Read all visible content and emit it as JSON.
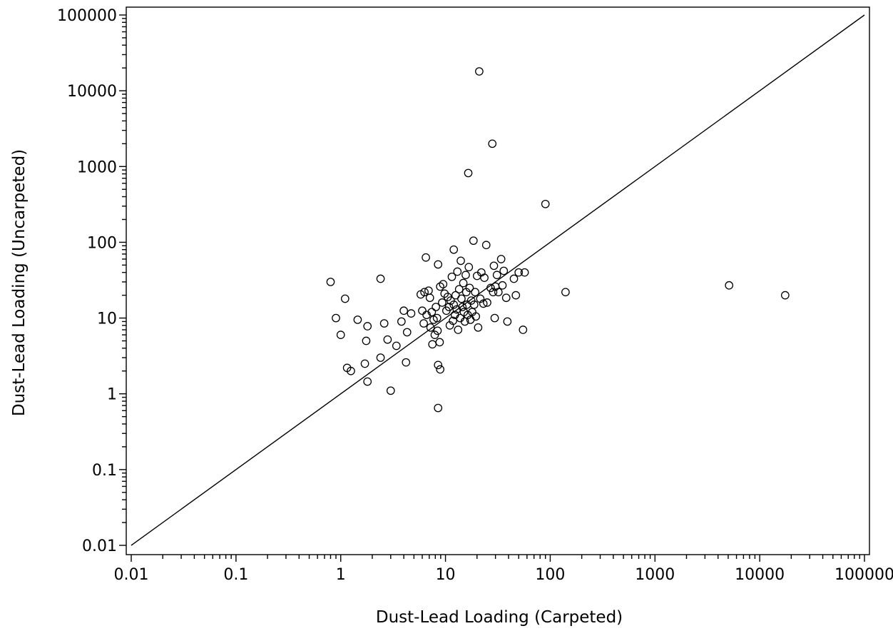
{
  "chart_data": {
    "type": "scatter",
    "title": "",
    "xlabel": "Dust-Lead Loading (Carpeted)",
    "ylabel": "Dust-Lead Loading (Uncarpeted)",
    "xscale": "log",
    "yscale": "log",
    "xlim": [
      0.01,
      100000
    ],
    "ylim": [
      0.01,
      100000
    ],
    "x_ticks": [
      0.01,
      0.1,
      1,
      10,
      100,
      1000,
      10000,
      100000
    ],
    "x_tick_labels": [
      "0.01",
      "0.1",
      "1",
      "10",
      "100",
      "1000",
      "10000",
      "100000"
    ],
    "y_ticks": [
      0.01,
      0.1,
      1,
      10,
      100,
      1000,
      10000,
      100000
    ],
    "y_tick_labels": [
      "0.01",
      "0.1",
      "1",
      "10",
      "100",
      "1000",
      "10000",
      "100000"
    ],
    "grid": false,
    "reference_line": {
      "from": [
        0.01,
        0.01
      ],
      "to": [
        100000,
        100000
      ]
    },
    "points": [
      [
        0.8,
        30
      ],
      [
        0.9,
        10
      ],
      [
        1.0,
        6
      ],
      [
        1.1,
        18
      ],
      [
        1.15,
        2.2
      ],
      [
        1.25,
        2.0
      ],
      [
        1.45,
        9.5
      ],
      [
        1.7,
        2.5
      ],
      [
        1.75,
        5.0
      ],
      [
        1.8,
        7.8
      ],
      [
        1.8,
        1.45
      ],
      [
        2.4,
        33
      ],
      [
        2.4,
        3.0
      ],
      [
        2.6,
        8.5
      ],
      [
        2.8,
        5.2
      ],
      [
        3.0,
        1.1
      ],
      [
        3.4,
        4.3
      ],
      [
        3.8,
        9.0
      ],
      [
        4.0,
        12.5
      ],
      [
        4.2,
        2.6
      ],
      [
        4.3,
        6.5
      ],
      [
        4.7,
        11.5
      ],
      [
        5.8,
        20.5
      ],
      [
        6.0,
        12.5
      ],
      [
        6.2,
        8.5
      ],
      [
        6.3,
        22
      ],
      [
        6.5,
        63
      ],
      [
        6.6,
        11
      ],
      [
        6.9,
        23
      ],
      [
        7.1,
        18.5
      ],
      [
        7.2,
        7.5
      ],
      [
        7.4,
        12
      ],
      [
        7.5,
        4.5
      ],
      [
        7.7,
        9.5
      ],
      [
        7.9,
        6.0
      ],
      [
        8.1,
        14
      ],
      [
        8.3,
        10
      ],
      [
        8.4,
        6.8
      ],
      [
        8.5,
        51
      ],
      [
        8.5,
        2.4
      ],
      [
        8.5,
        0.65
      ],
      [
        8.8,
        4.8
      ],
      [
        8.9,
        2.1
      ],
      [
        8.9,
        26
      ],
      [
        9.3,
        16
      ],
      [
        9.5,
        28
      ],
      [
        9.8,
        21
      ],
      [
        10.2,
        12.5
      ],
      [
        10.5,
        19
      ],
      [
        10.8,
        14
      ],
      [
        11.0,
        8
      ],
      [
        11.2,
        17
      ],
      [
        11.5,
        35
      ],
      [
        11.8,
        9.2
      ],
      [
        12.0,
        80
      ],
      [
        12.0,
        15
      ],
      [
        12.3,
        11
      ],
      [
        12.5,
        20
      ],
      [
        12.8,
        13
      ],
      [
        13.0,
        41
      ],
      [
        13.2,
        7
      ],
      [
        13.5,
        24
      ],
      [
        13.8,
        10
      ],
      [
        14.0,
        57
      ],
      [
        14.2,
        18
      ],
      [
        14.5,
        14
      ],
      [
        14.8,
        29
      ],
      [
        15.0,
        12
      ],
      [
        15.3,
        9
      ],
      [
        15.6,
        37
      ],
      [
        15.8,
        22
      ],
      [
        16.0,
        15
      ],
      [
        16.3,
        11
      ],
      [
        16.5,
        820
      ],
      [
        16.7,
        47
      ],
      [
        17.0,
        25
      ],
      [
        17.3,
        9.5
      ],
      [
        17.6,
        17
      ],
      [
        18.0,
        12
      ],
      [
        18.5,
        105
      ],
      [
        18.8,
        15
      ],
      [
        19.2,
        22
      ],
      [
        19.5,
        10.5
      ],
      [
        20.0,
        36
      ],
      [
        20.5,
        7.5
      ],
      [
        21.0,
        18000
      ],
      [
        21.5,
        18
      ],
      [
        22.0,
        40
      ],
      [
        23.0,
        15.5
      ],
      [
        23.5,
        34
      ],
      [
        24.5,
        92
      ],
      [
        25.0,
        16
      ],
      [
        27.0,
        25
      ],
      [
        28.0,
        2000
      ],
      [
        28.5,
        22
      ],
      [
        29.0,
        49
      ],
      [
        29.5,
        10
      ],
      [
        30.0,
        26
      ],
      [
        31.0,
        37
      ],
      [
        32.0,
        22
      ],
      [
        34.0,
        60
      ],
      [
        35.0,
        27
      ],
      [
        36.0,
        42
      ],
      [
        38.0,
        18.5
      ],
      [
        39.0,
        9
      ],
      [
        45.0,
        33
      ],
      [
        47.0,
        20
      ],
      [
        50.0,
        40
      ],
      [
        55.0,
        7
      ],
      [
        57.0,
        40
      ],
      [
        90.0,
        320
      ],
      [
        140.0,
        22
      ],
      [
        5100.0,
        27
      ],
      [
        17500.0,
        20
      ]
    ]
  }
}
